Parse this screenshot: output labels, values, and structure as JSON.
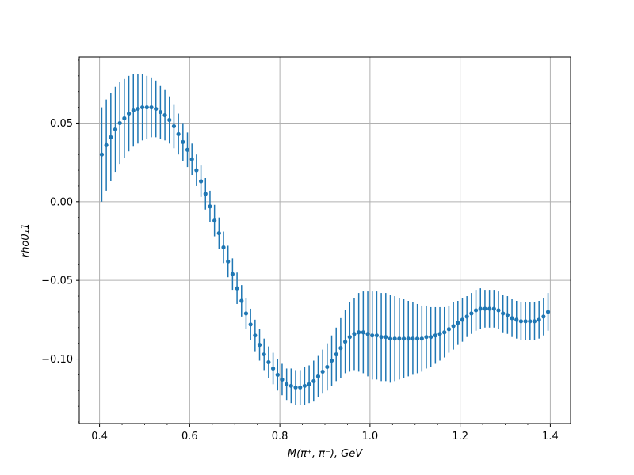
{
  "chart_data": {
    "type": "scatter",
    "title": "",
    "xlabel": "M(π⁺, π⁻), GeV",
    "ylabel": "rho0₁1",
    "xlim": [
      0.355,
      1.445
    ],
    "ylim": [
      -0.141,
      0.092
    ],
    "x_ticks": [
      0.4,
      0.6,
      0.8,
      1.0,
      1.2,
      1.4
    ],
    "x_tick_labels": [
      "0.4",
      "0.6",
      "0.8",
      "1.0",
      "1.2",
      "1.4"
    ],
    "y_ticks": [
      0.05,
      0.0,
      -0.05,
      -0.1
    ],
    "y_tick_labels": [
      "0.05",
      "0.00",
      "−0.05",
      "−0.10"
    ],
    "grid": true,
    "legend": "none",
    "color": "#1f77b4",
    "series": [
      {
        "x": [
          0.405,
          0.415,
          0.425,
          0.435,
          0.445,
          0.455,
          0.465,
          0.475,
          0.485,
          0.495,
          0.505,
          0.515,
          0.525,
          0.535,
          0.545,
          0.555,
          0.565,
          0.575,
          0.585,
          0.595,
          0.605,
          0.615,
          0.625,
          0.635,
          0.645,
          0.655,
          0.665,
          0.675,
          0.685,
          0.695,
          0.705,
          0.715,
          0.725,
          0.735,
          0.745,
          0.755,
          0.765,
          0.775,
          0.785,
          0.795,
          0.805,
          0.815,
          0.825,
          0.835,
          0.845,
          0.855,
          0.865,
          0.875,
          0.885,
          0.895,
          0.905,
          0.915,
          0.925,
          0.935,
          0.945,
          0.955,
          0.965,
          0.975,
          0.985,
          0.995,
          1.005,
          1.015,
          1.025,
          1.035,
          1.045,
          1.055,
          1.065,
          1.075,
          1.085,
          1.095,
          1.105,
          1.115,
          1.125,
          1.135,
          1.145,
          1.155,
          1.165,
          1.175,
          1.185,
          1.195,
          1.205,
          1.215,
          1.225,
          1.235,
          1.245,
          1.255,
          1.265,
          1.275,
          1.285,
          1.295,
          1.305,
          1.315,
          1.325,
          1.335,
          1.345,
          1.355,
          1.365,
          1.375,
          1.385,
          1.395
        ],
        "y": [
          0.03,
          0.036,
          0.041,
          0.046,
          0.05,
          0.053,
          0.056,
          0.058,
          0.059,
          0.06,
          0.06,
          0.06,
          0.059,
          0.057,
          0.055,
          0.052,
          0.048,
          0.043,
          0.038,
          0.033,
          0.027,
          0.02,
          0.013,
          0.005,
          -0.003,
          -0.012,
          -0.02,
          -0.029,
          -0.038,
          -0.046,
          -0.055,
          -0.063,
          -0.071,
          -0.078,
          -0.085,
          -0.091,
          -0.097,
          -0.102,
          -0.106,
          -0.11,
          -0.113,
          -0.116,
          -0.117,
          -0.118,
          -0.118,
          -0.117,
          -0.116,
          -0.114,
          -0.111,
          -0.108,
          -0.105,
          -0.101,
          -0.097,
          -0.093,
          -0.089,
          -0.086,
          -0.084,
          -0.083,
          -0.083,
          -0.084,
          -0.085,
          -0.085,
          -0.086,
          -0.086,
          -0.087,
          -0.087,
          -0.087,
          -0.087,
          -0.087,
          -0.087,
          -0.087,
          -0.087,
          -0.086,
          -0.086,
          -0.085,
          -0.084,
          -0.083,
          -0.081,
          -0.079,
          -0.077,
          -0.075,
          -0.073,
          -0.071,
          -0.069,
          -0.068,
          -0.068,
          -0.068,
          -0.068,
          -0.069,
          -0.071,
          -0.072,
          -0.074,
          -0.075,
          -0.076,
          -0.076,
          -0.076,
          -0.076,
          -0.075,
          -0.073,
          -0.07
        ],
        "err": [
          0.03,
          0.029,
          0.028,
          0.027,
          0.026,
          0.025,
          0.024,
          0.023,
          0.022,
          0.021,
          0.02,
          0.019,
          0.018,
          0.017,
          0.016,
          0.015,
          0.014,
          0.013,
          0.012,
          0.011,
          0.01,
          0.01,
          0.01,
          0.01,
          0.01,
          0.01,
          0.01,
          0.01,
          0.01,
          0.01,
          0.01,
          0.01,
          0.01,
          0.01,
          0.01,
          0.01,
          0.01,
          0.01,
          0.01,
          0.01,
          0.01,
          0.01,
          0.011,
          0.011,
          0.011,
          0.012,
          0.012,
          0.013,
          0.013,
          0.014,
          0.015,
          0.016,
          0.017,
          0.019,
          0.02,
          0.022,
          0.023,
          0.025,
          0.026,
          0.027,
          0.028,
          0.028,
          0.028,
          0.028,
          0.028,
          0.027,
          0.026,
          0.025,
          0.024,
          0.023,
          0.022,
          0.021,
          0.02,
          0.019,
          0.018,
          0.017,
          0.016,
          0.015,
          0.015,
          0.014,
          0.014,
          0.013,
          0.013,
          0.013,
          0.013,
          0.012,
          0.012,
          0.012,
          0.012,
          0.012,
          0.012,
          0.012,
          0.012,
          0.012,
          0.012,
          0.012,
          0.012,
          0.012,
          0.012,
          0.012
        ]
      }
    ]
  }
}
